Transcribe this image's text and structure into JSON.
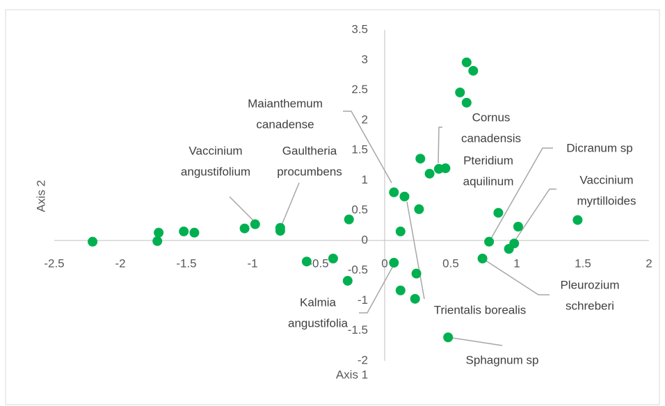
{
  "chart_data": {
    "type": "scatter",
    "x": [
      -2.21,
      -1.71,
      -1.72,
      -1.52,
      -1.44,
      -1.06,
      -0.98,
      -0.79,
      -0.79,
      -0.27,
      -0.59,
      -0.39,
      -0.28,
      0.07,
      0.07,
      0.15,
      0.12,
      0.26,
      0.27,
      0.34,
      0.41,
      0.46,
      0.24,
      0.12,
      0.23,
      0.48,
      0.62,
      0.67,
      0.57,
      0.62,
      0.86,
      0.79,
      1.01,
      0.98,
      0.94,
      0.74,
      1.46
    ],
    "values": [
      -0.02,
      0.13,
      -0.01,
      0.15,
      0.13,
      0.2,
      0.27,
      0.21,
      0.16,
      0.35,
      -0.35,
      -0.3,
      -0.67,
      -0.37,
      0.8,
      0.73,
      0.15,
      0.52,
      1.36,
      1.11,
      1.19,
      1.2,
      -0.55,
      -0.83,
      -0.97,
      -1.61,
      2.96,
      2.82,
      2.46,
      2.29,
      0.46,
      -0.02,
      0.23,
      -0.05,
      -0.14,
      -0.3,
      0.34
    ],
    "color": "#00b050",
    "xlim": [
      -2.5,
      2
    ],
    "xticks": [
      -2.5,
      -2,
      -1.5,
      -1,
      -0.5,
      0,
      0.5,
      1,
      1.5,
      2
    ],
    "ylim": [
      -2,
      3.5
    ],
    "yticks": [
      -2,
      -1.5,
      -1,
      -0.5,
      0,
      0.5,
      1,
      1.5,
      2,
      2.5,
      3,
      3.5
    ],
    "x_label": "Axis 1",
    "y_label": "Axis 2",
    "annotations": [
      {
        "lines": [
          "Maianthemum",
          "canadense"
        ]
      },
      {
        "lines": [
          "Cornus",
          "canadensis"
        ]
      },
      {
        "lines": [
          "Pteridium",
          "aquilinum"
        ]
      },
      {
        "lines": [
          "Dicranum sp"
        ]
      },
      {
        "lines": [
          "Vaccinium",
          "myrtilloides"
        ]
      },
      {
        "lines": [
          "Pleurozium",
          "schreberi"
        ]
      },
      {
        "lines": [
          "Sphagnum sp"
        ]
      },
      {
        "lines": [
          "Trientalis borealis"
        ]
      },
      {
        "lines": [
          "Kalmia",
          "angustifolia"
        ]
      },
      {
        "lines": [
          "Vaccinium",
          "angustifolium"
        ]
      },
      {
        "lines": [
          "Gaultheria",
          "procumbens"
        ]
      }
    ]
  }
}
